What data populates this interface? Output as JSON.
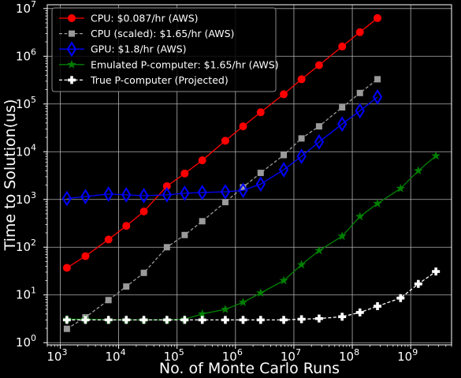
{
  "chart_data": {
    "type": "line",
    "xlabel": "No. of Monte Carlo Runs",
    "ylabel": "Time to Solution(us)",
    "xscale": "log",
    "yscale": "log",
    "xlim": [
      600,
      5000000000
    ],
    "ylim": [
      0.9,
      12000000
    ],
    "xticks": [
      {
        "base": "10",
        "exp": "3",
        "value": 1000
      },
      {
        "base": "10",
        "exp": "4",
        "value": 10000
      },
      {
        "base": "10",
        "exp": "5",
        "value": 100000
      },
      {
        "base": "10",
        "exp": "6",
        "value": 1000000
      },
      {
        "base": "10",
        "exp": "7",
        "value": 10000000
      },
      {
        "base": "10",
        "exp": "8",
        "value": 100000000
      },
      {
        "base": "10",
        "exp": "9",
        "value": 1000000000
      }
    ],
    "yticks": [
      {
        "base": "10",
        "exp": "0",
        "value": 1
      },
      {
        "base": "10",
        "exp": "1",
        "value": 10
      },
      {
        "base": "10",
        "exp": "2",
        "value": 100
      },
      {
        "base": "10",
        "exp": "3",
        "value": 1000
      },
      {
        "base": "10",
        "exp": "4",
        "value": 10000
      },
      {
        "base": "10",
        "exp": "5",
        "value": 100000
      },
      {
        "base": "10",
        "exp": "6",
        "value": 1000000
      },
      {
        "base": "10",
        "exp": "7",
        "value": 10000000
      }
    ],
    "grid": true,
    "legend_position": "top-left",
    "series": [
      {
        "name": "CPU: $0.087/hr (AWS)",
        "color": "#ff0000",
        "marker": "circle",
        "line_style": "solid",
        "x": [
          1300,
          2700,
          6700,
          13500,
          27000,
          67000,
          135000,
          270000,
          670000,
          1350000,
          2700000,
          6700000,
          13500000,
          27000000,
          67000000,
          135000000,
          270000000
        ],
        "y": [
          37,
          65,
          145,
          280,
          560,
          1900,
          3500,
          6600,
          17000,
          34000,
          67000,
          160000,
          330000,
          650000,
          1600000,
          3200000,
          6300000
        ]
      },
      {
        "name": "CPU (scaled): $1.65/hr (AWS)",
        "color": "#9a9a9a",
        "marker": "square",
        "line_style": "dashed",
        "x": [
          1300,
          2700,
          6700,
          13500,
          27000,
          67000,
          135000,
          270000,
          670000,
          1350000,
          2700000,
          6700000,
          13500000,
          27000000,
          67000000,
          135000000,
          270000000
        ],
        "y": [
          1.95,
          3.4,
          7.8,
          15,
          29,
          100,
          180,
          350,
          880,
          1800,
          3600,
          8500,
          19000,
          34000,
          85000,
          170000,
          330000
        ]
      },
      {
        "name": "GPU: $1.8/hr (AWS)",
        "color": "#0000ff",
        "marker": "thin_diamond",
        "line_style": "solid",
        "x": [
          1300,
          2700,
          6700,
          13500,
          27000,
          67000,
          135000,
          270000,
          670000,
          1350000,
          2700000,
          6700000,
          13500000,
          27000000,
          67000000,
          135000000,
          270000000
        ],
        "y": [
          1050,
          1150,
          1300,
          1250,
          1200,
          1250,
          1350,
          1400,
          1450,
          1550,
          2100,
          4200,
          8000,
          16000,
          38000,
          72000,
          140000
        ]
      },
      {
        "name": "Emulated P-computer: $1.65/hr (AWS)",
        "color": "#008000",
        "marker": "star",
        "line_style": "solid",
        "x": [
          1300,
          2700,
          6700,
          13500,
          27000,
          67000,
          135000,
          270000,
          670000,
          1350000,
          2700000,
          6700000,
          13500000,
          27000000,
          67000000,
          135000000,
          270000000,
          670000000,
          1350000000,
          2700000000
        ],
        "y": [
          3.1,
          3.1,
          3.0,
          3.0,
          3.0,
          3.0,
          3.1,
          4.0,
          5.0,
          7.0,
          11,
          20,
          43,
          85,
          170,
          440,
          820,
          1700,
          4000,
          8200
        ]
      },
      {
        "name": "True P-computer (Projected)",
        "color": "#ffffff",
        "marker": "plus",
        "line_style": "dashed",
        "x": [
          1300,
          2700,
          6700,
          13500,
          27000,
          67000,
          135000,
          270000,
          670000,
          1350000,
          2700000,
          6700000,
          13500000,
          27000000,
          67000000,
          135000000,
          270000000,
          670000000,
          1350000000,
          2700000000
        ],
        "y": [
          3.0,
          3.0,
          3.0,
          3.0,
          3.0,
          3.0,
          3.0,
          3.0,
          3.0,
          3.0,
          3.0,
          3.0,
          3.1,
          3.2,
          3.5,
          4.3,
          5.8,
          8.6,
          17,
          31
        ]
      }
    ]
  }
}
